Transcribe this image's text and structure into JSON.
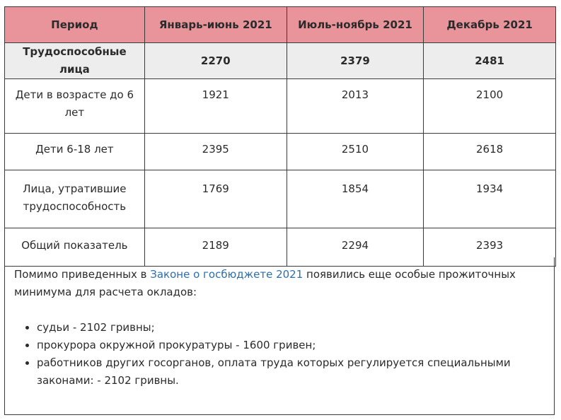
{
  "table": {
    "headers": [
      "Период",
      "Январь-июнь 2021",
      "Июль-ноябрь 2021",
      "Декабрь 2021"
    ],
    "rows": [
      {
        "label": "Трудоспособные лица",
        "v1": "2270",
        "v2": "2379",
        "v3": "2481"
      },
      {
        "label": "Дети в возрасте до 6 лет",
        "v1": "1921",
        "v2": "2013",
        "v3": "2100"
      },
      {
        "label": "Дети 6-18 лет",
        "v1": "2395",
        "v2": "2510",
        "v3": "2618"
      },
      {
        "label": "Лица, утратившие трудоспособность",
        "v1": "1769",
        "v2": "1854",
        "v3": "1934"
      },
      {
        "label": "Общий показатель",
        "v1": "2189",
        "v2": "2294",
        "v3": "2393"
      }
    ]
  },
  "note": {
    "text_before": "Помимо приведенных в ",
    "link": "Законе о госбюджете 2021",
    "text_after": " появились еще особые прожиточных минимума для расчета окладов:",
    "items": [
      "судьи - 2102 гривны;",
      "прокурора окружной прокуратуры - 1600 гривен;",
      "работников других госорганов, оплата труда которых регулируется специальными законами: - 2102 гривны."
    ]
  }
}
